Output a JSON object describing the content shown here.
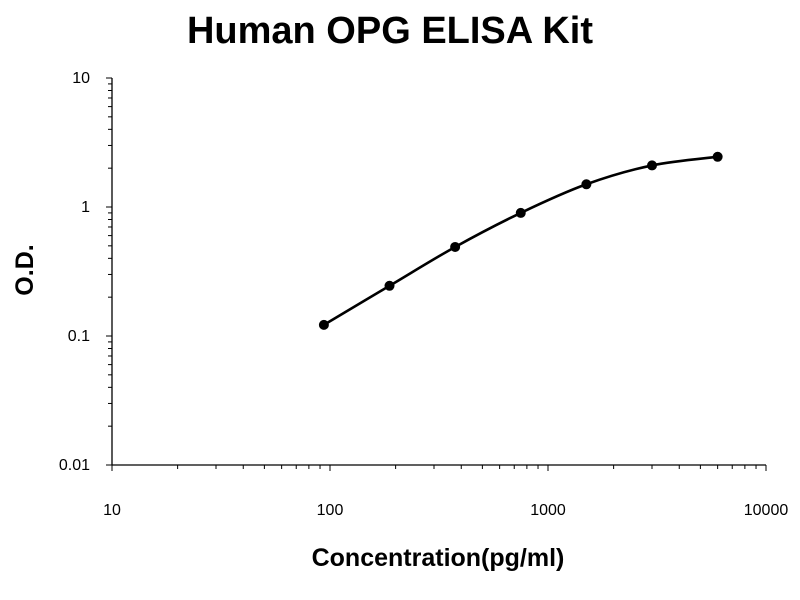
{
  "chart_data": {
    "type": "line",
    "title": "Human OPG ELISA Kit",
    "xlabel": "Concentration(pg/ml)",
    "ylabel": "O.D.",
    "xscale": "log",
    "yscale": "log",
    "xlim": [
      10,
      10000
    ],
    "ylim": [
      0.01,
      10
    ],
    "x_tick_labels": [
      "10",
      "100",
      "1000",
      "10000"
    ],
    "y_tick_labels": [
      "10",
      "1",
      "0.1",
      "0.01"
    ],
    "grid": false,
    "legend": "none",
    "series": [
      {
        "x": [
          93.75,
          187.5,
          375,
          750,
          1500,
          3000,
          6000
        ],
        "values": [
          0.122,
          0.245,
          0.49,
          0.9,
          1.5,
          2.1,
          2.45
        ],
        "color": "#000000",
        "marker": "circle",
        "line": "smooth"
      }
    ]
  }
}
